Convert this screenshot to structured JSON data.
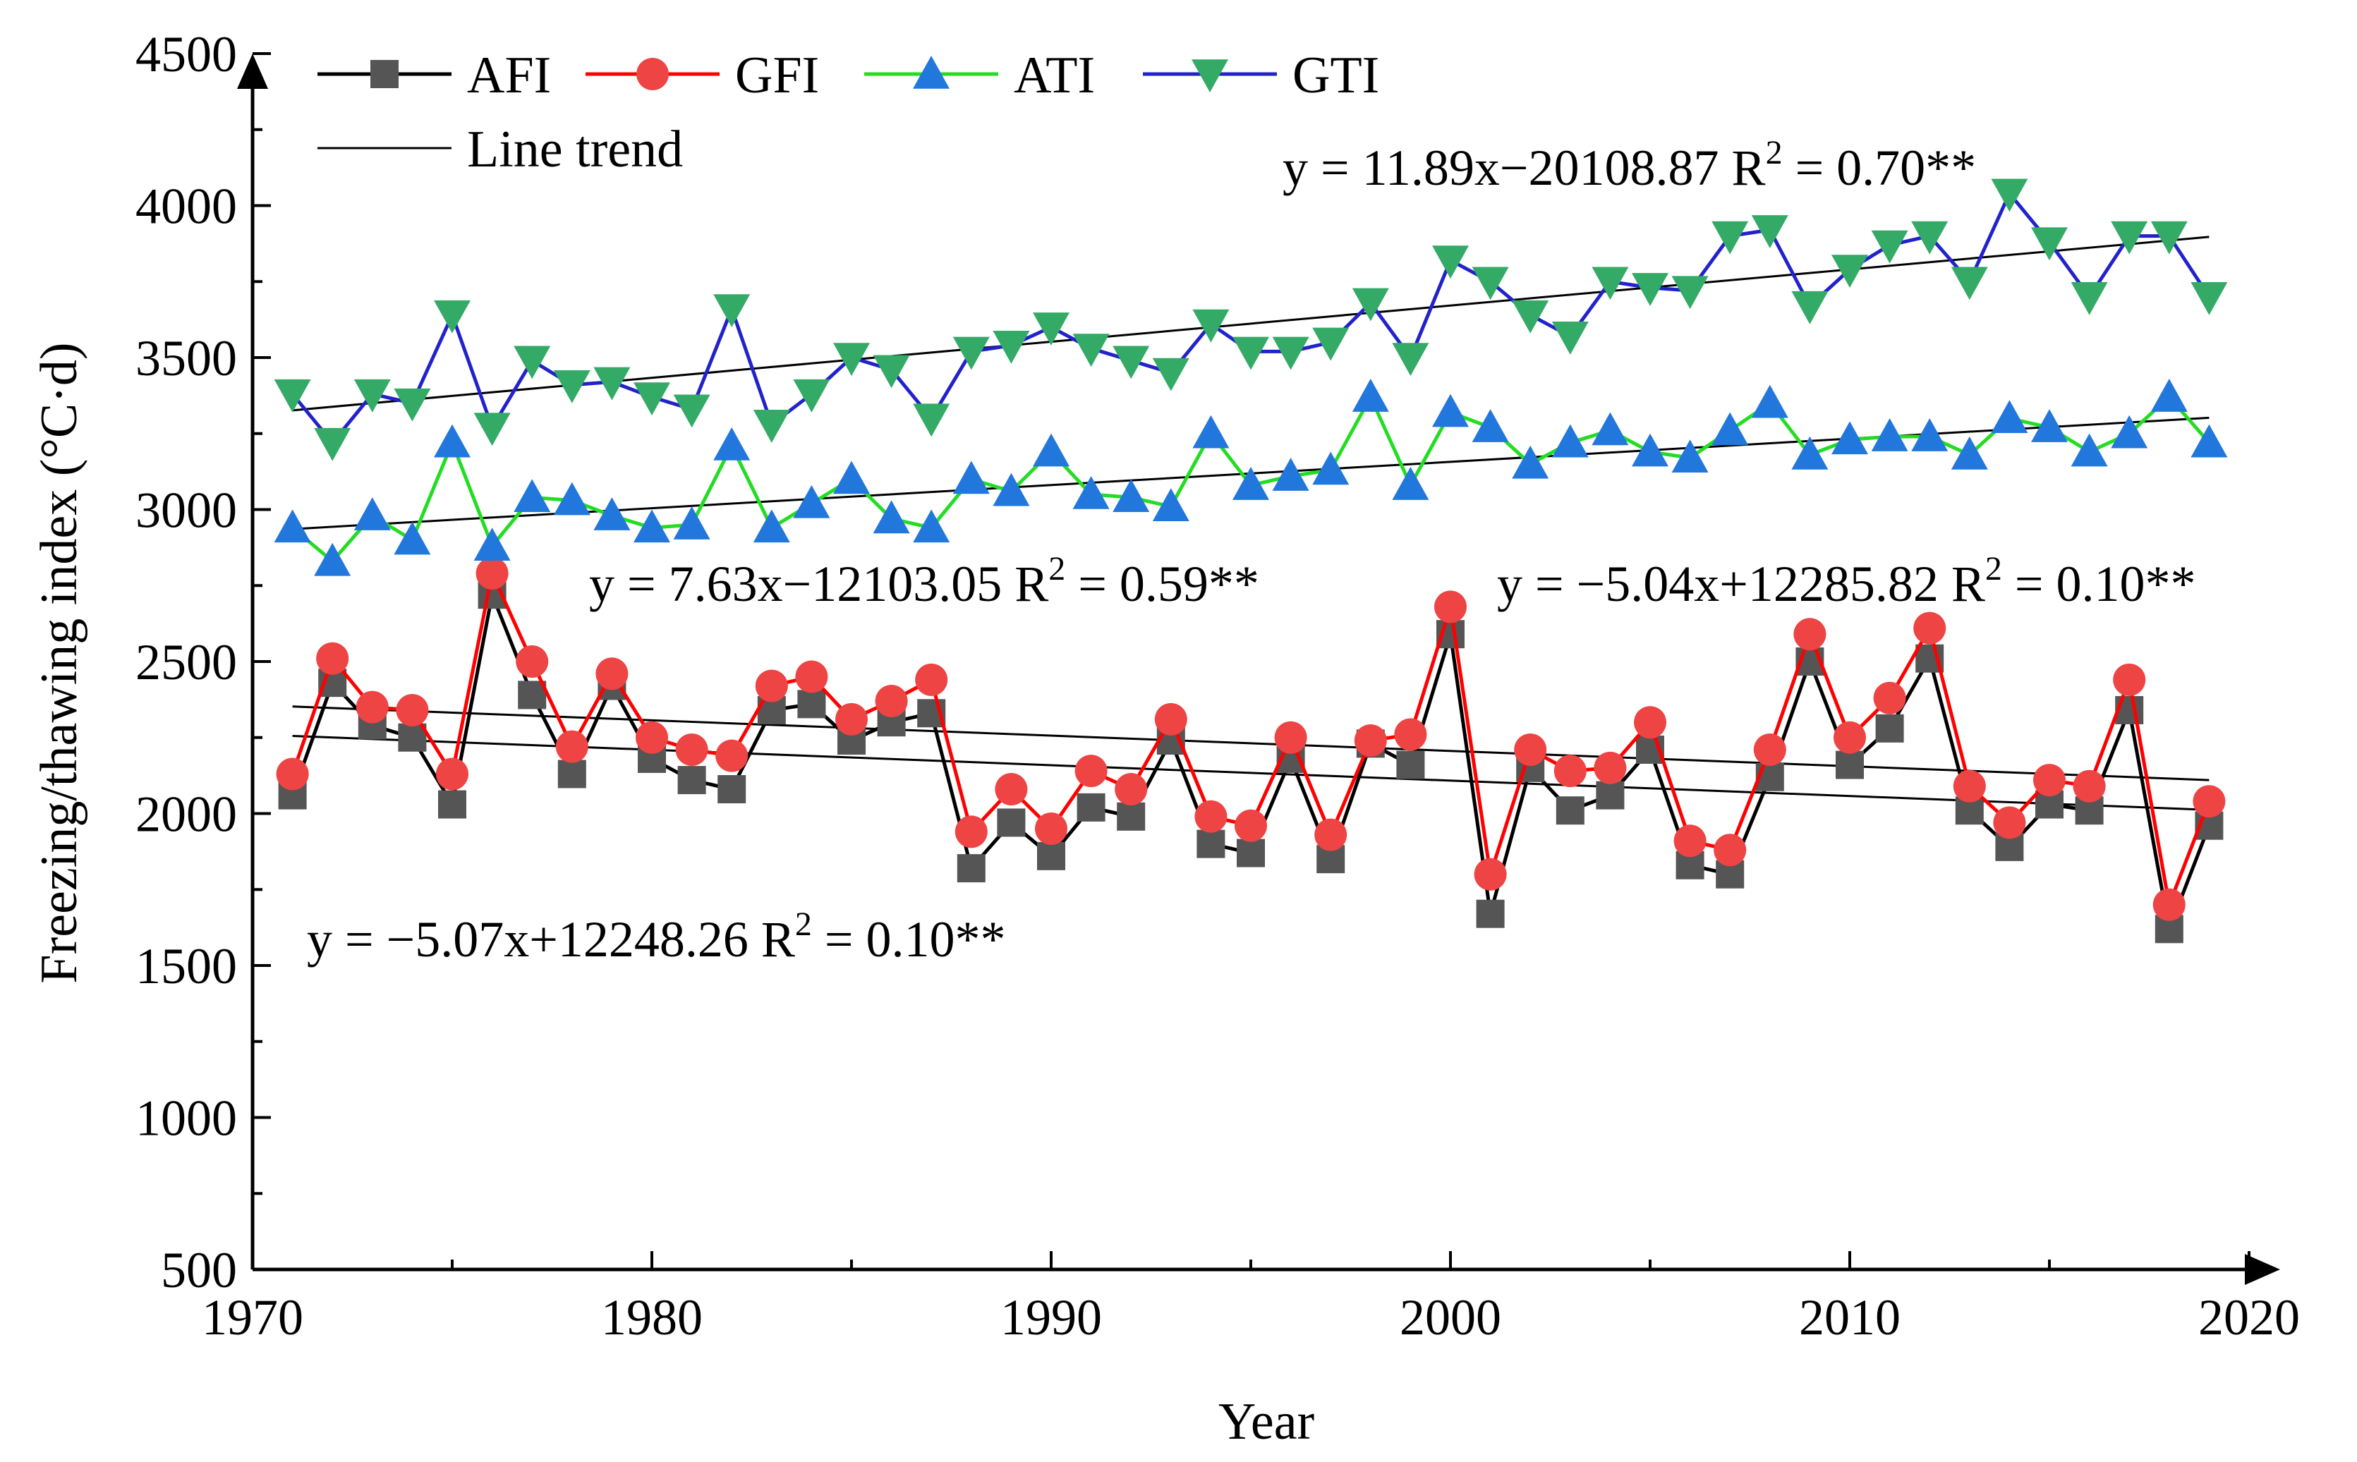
{
  "chart_data": {
    "type": "line",
    "xlabel": "Year",
    "ylabel": "Freezing/thawing index (°C·d)",
    "xlim": [
      1970,
      2020
    ],
    "ylim": [
      500,
      4500
    ],
    "x_ticks": [
      1970,
      1980,
      1990,
      2000,
      2010,
      2020
    ],
    "y_ticks": [
      500,
      1000,
      1500,
      2000,
      2500,
      3000,
      3500,
      4000,
      4500
    ],
    "x": [
      1971,
      1972,
      1973,
      1974,
      1975,
      1976,
      1977,
      1978,
      1979,
      1980,
      1981,
      1982,
      1983,
      1984,
      1985,
      1986,
      1987,
      1988,
      1989,
      1990,
      1991,
      1992,
      1993,
      1994,
      1995,
      1996,
      1997,
      1998,
      1999,
      2000,
      2001,
      2002,
      2003,
      2004,
      2005,
      2006,
      2007,
      2008,
      2009,
      2010,
      2011,
      2012,
      2013,
      2014,
      2015,
      2016,
      2017,
      2018,
      2019
    ],
    "series": [
      {
        "name": "AFI",
        "line_color": "#000000",
        "marker_color": "#555555",
        "marker": "square",
        "values": [
          2060,
          2430,
          2290,
          2250,
          2030,
          2720,
          2390,
          2130,
          2420,
          2180,
          2110,
          2080,
          2340,
          2360,
          2240,
          2300,
          2330,
          1820,
          1970,
          1860,
          2020,
          1990,
          2240,
          1900,
          1870,
          2180,
          1850,
          2230,
          2160,
          2590,
          1670,
          2150,
          2010,
          2060,
          2210,
          1830,
          1800,
          2120,
          2500,
          2160,
          2280,
          2510,
          2010,
          1890,
          2030,
          2010,
          2340,
          1620,
          1960
        ]
      },
      {
        "name": "GFI",
        "line_color": "#ff0000",
        "marker_color": "#ee4444",
        "marker": "circle",
        "values": [
          2130,
          2510,
          2350,
          2340,
          2130,
          2790,
          2500,
          2220,
          2460,
          2250,
          2210,
          2190,
          2420,
          2450,
          2310,
          2370,
          2440,
          1940,
          2080,
          1950,
          2140,
          2080,
          2310,
          1990,
          1960,
          2250,
          1930,
          2240,
          2260,
          2680,
          1800,
          2210,
          2140,
          2150,
          2300,
          1910,
          1880,
          2210,
          2590,
          2250,
          2380,
          2610,
          2090,
          1970,
          2110,
          2090,
          2440,
          1700,
          2040
        ]
      },
      {
        "name": "ATI",
        "line_color": "#22dd22",
        "marker_color": "#2277dd",
        "marker": "triangle-up",
        "values": [
          2940,
          2830,
          2980,
          2900,
          3220,
          2880,
          3040,
          3030,
          2980,
          2940,
          2950,
          3210,
          2940,
          3020,
          3100,
          2970,
          2940,
          3100,
          3060,
          3190,
          3050,
          3040,
          3010,
          3250,
          3080,
          3110,
          3130,
          3370,
          3080,
          3320,
          3270,
          3150,
          3220,
          3260,
          3190,
          3170,
          3260,
          3350,
          3180,
          3230,
          3240,
          3240,
          3180,
          3300,
          3270,
          3190,
          3250,
          3370,
          3220
        ]
      },
      {
        "name": "GTI",
        "line_color": "#2222cc",
        "marker_color": "#33aa66",
        "marker": "triangle-down",
        "values": [
          3380,
          3220,
          3380,
          3350,
          3640,
          3270,
          3490,
          3410,
          3420,
          3370,
          3330,
          3660,
          3280,
          3380,
          3500,
          3460,
          3300,
          3520,
          3540,
          3600,
          3530,
          3490,
          3450,
          3610,
          3520,
          3520,
          3550,
          3680,
          3500,
          3820,
          3750,
          3640,
          3570,
          3750,
          3730,
          3720,
          3900,
          3920,
          3670,
          3790,
          3870,
          3900,
          3750,
          4040,
          3880,
          3700,
          3900,
          3900,
          3700
        ]
      }
    ],
    "trend_lines": [
      {
        "name": "AFI trend",
        "slope": -5.07,
        "intercept": 12248.26
      },
      {
        "name": "GFI trend",
        "slope": -5.04,
        "intercept": 12285.82
      },
      {
        "name": "ATI trend",
        "slope": 7.63,
        "intercept": -12103.05
      },
      {
        "name": "GTI trend",
        "slope": 11.89,
        "intercept": -20108.87
      }
    ],
    "legend": {
      "placement": "top-left",
      "entries": [
        "AFI",
        "GFI",
        "ATI",
        "GTI"
      ],
      "trend_label": "Line trend"
    },
    "annotations": [
      {
        "id": "gti",
        "prefix": "y = 11.89x−20108.87  R",
        "sup": "2",
        "suffix": " = 0.70**"
      },
      {
        "id": "ati",
        "prefix": "y = 7.63x−12103.05  R",
        "sup": "2",
        "suffix": " = 0.59**"
      },
      {
        "id": "gfi",
        "prefix": "y = −5.04x+12285.82  R",
        "sup": "2",
        "suffix": " = 0.10**"
      },
      {
        "id": "afi",
        "prefix": "y = −5.07x+12248.26  R",
        "sup": "2",
        "suffix": " = 0.10**"
      }
    ]
  }
}
